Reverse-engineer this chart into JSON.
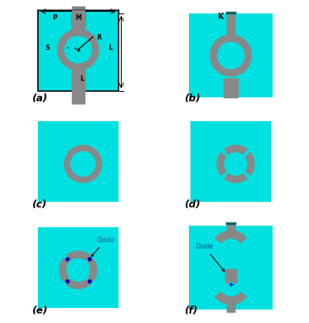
{
  "bg_color": "#00E0E0",
  "ring_color": "#888888",
  "white_bg": "#FFFFFF",
  "black": "#000000",
  "blue": "#0000BB",
  "cyan_dark": "#009999",
  "panel_labels": [
    "(a)",
    "(b)",
    "(c)",
    "(d)",
    "(e)",
    "(f)"
  ],
  "panel_label_fontsize": 9
}
